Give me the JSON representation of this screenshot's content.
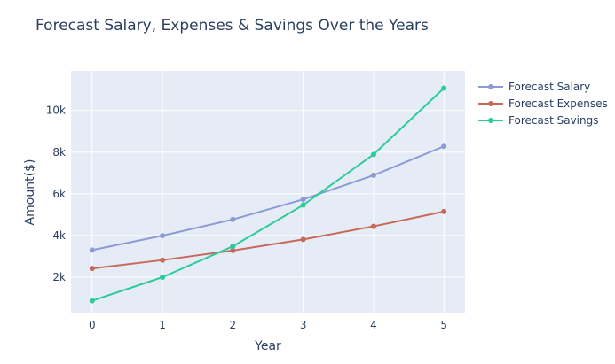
{
  "chart_data": {
    "type": "line",
    "title": "Forecast Salary, Expenses & Savings Over the Years",
    "xlabel": "Year",
    "ylabel": "Amount($)",
    "x": [
      0,
      1,
      2,
      3,
      4,
      5
    ],
    "x_tick_labels": [
      "0",
      "1",
      "2",
      "3",
      "4",
      "5"
    ],
    "xlim": [
      -0.3,
      5.3
    ],
    "ylim": [
      300,
      11900
    ],
    "y_ticks": [
      2000,
      4000,
      6000,
      8000,
      10000
    ],
    "y_tick_labels": [
      "2k",
      "4k",
      "6k",
      "8k",
      "10k"
    ],
    "grid": true,
    "legend_position": "top-right",
    "series": [
      {
        "name": "Forecast Salary",
        "color": "#8c9bd6",
        "values": [
          3300,
          3990,
          4770,
          5730,
          6890,
          8280
        ]
      },
      {
        "name": "Forecast Expenses",
        "color": "#c8685a",
        "values": [
          2420,
          2820,
          3280,
          3810,
          4440,
          5150
        ]
      },
      {
        "name": "Forecast Savings",
        "color": "#2ccb9a",
        "values": [
          870,
          2000,
          3480,
          5460,
          7890,
          11070
        ]
      }
    ]
  }
}
